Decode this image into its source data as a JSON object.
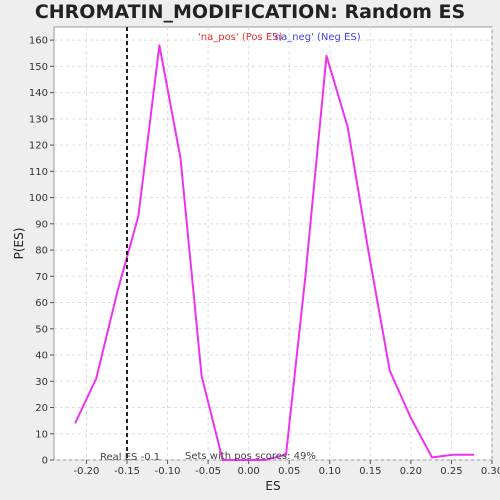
{
  "chart_data": {
    "type": "line",
    "title": "CHROMATIN_MODIFICATION: Random ES distribution",
    "xlabel": "ES",
    "ylabel": "P(ES)",
    "xlim": [
      -0.24,
      0.3
    ],
    "ylim": [
      0,
      165
    ],
    "x_ticks": [
      -0.2,
      -0.15,
      -0.1,
      -0.05,
      0.0,
      0.05,
      0.1,
      0.15,
      0.2,
      0.25,
      0.3
    ],
    "x_tick_labels": [
      "-0.20",
      "-0.15",
      "-0.10",
      "-0.05",
      "0.00",
      "0.05",
      "0.10",
      "0.15",
      "0.20",
      "0.25",
      "0.30"
    ],
    "y_ticks": [
      0,
      10,
      20,
      30,
      40,
      50,
      60,
      70,
      80,
      90,
      100,
      110,
      120,
      130,
      140,
      150,
      160
    ],
    "grid": true,
    "legend_position": "top-center",
    "series": [
      {
        "name": "'na_pos' (Pos ES)",
        "color": "#dd3333",
        "x": [],
        "values": []
      },
      {
        "name": "'na_neg' (Neg ES)",
        "color": "#4444dd",
        "x": [],
        "values": []
      },
      {
        "name": "",
        "color": "#ee33ee",
        "x": [
          -0.214,
          -0.188,
          -0.162,
          -0.136,
          -0.11,
          -0.084,
          -0.058,
          -0.032,
          -0.006,
          0.02,
          0.046,
          0.07,
          0.096,
          0.122,
          0.148,
          0.174,
          0.2,
          0.226,
          0.252,
          0.278
        ],
        "values": [
          14,
          31,
          64,
          93,
          158,
          115,
          32,
          0,
          0,
          0,
          2,
          70,
          154,
          127,
          79,
          34,
          16,
          1,
          2,
          2
        ]
      }
    ],
    "vline": {
      "x": -0.15,
      "style": "dashed",
      "color": "#222222"
    },
    "annotations": {
      "real_es": "Real ES -0.1",
      "pos_scores": "Sets with pos scores: 49%"
    }
  }
}
